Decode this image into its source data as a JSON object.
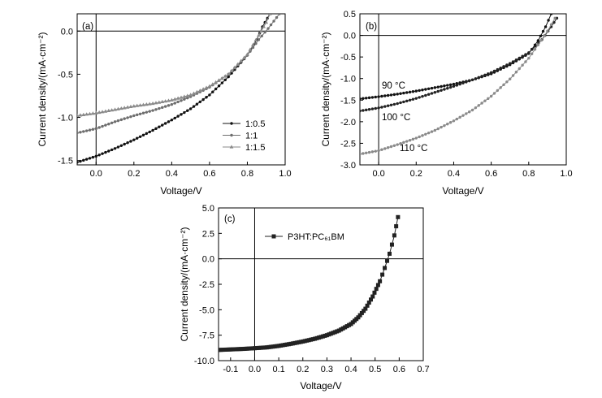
{
  "chart_data": [
    {
      "type": "line",
      "panel_label": "(a)",
      "xlabel": "Voltage/V",
      "ylabel": "Current density/(mA·cm⁻²)",
      "xlim": [
        -0.1,
        1.0
      ],
      "ylim": [
        -1.55,
        0.2
      ],
      "xticks": [
        0.0,
        0.2,
        0.4,
        0.6,
        0.8,
        1.0
      ],
      "xtick_labels": [
        "0.0",
        "0.2",
        "0.4",
        "0.6",
        "0.8",
        "1.0"
      ],
      "yticks": [
        -1.5,
        -1.0,
        -0.5,
        0.0
      ],
      "ytick_labels": [
        "-1.5",
        "-1.0",
        "-0.5",
        "0.0"
      ],
      "legend_position": "bottom-right",
      "series": [
        {
          "name": "1:0.5",
          "color": "#111111",
          "marker": "dot",
          "points": [
            [
              -0.1,
              -1.52
            ],
            [
              0.0,
              -1.45
            ],
            [
              0.1,
              -1.36
            ],
            [
              0.2,
              -1.26
            ],
            [
              0.3,
              -1.15
            ],
            [
              0.4,
              -1.03
            ],
            [
              0.5,
              -0.9
            ],
            [
              0.6,
              -0.74
            ],
            [
              0.7,
              -0.53
            ],
            [
              0.8,
              -0.28
            ],
            [
              0.85,
              -0.1
            ],
            [
              0.88,
              0.05
            ],
            [
              0.92,
              0.2
            ]
          ]
        },
        {
          "name": "1:1",
          "color": "#6e6e6e",
          "marker": "dot",
          "points": [
            [
              -0.1,
              -1.18
            ],
            [
              0.0,
              -1.13
            ],
            [
              0.1,
              -1.05
            ],
            [
              0.2,
              -0.98
            ],
            [
              0.3,
              -0.92
            ],
            [
              0.4,
              -0.85
            ],
            [
              0.5,
              -0.76
            ],
            [
              0.6,
              -0.65
            ],
            [
              0.7,
              -0.5
            ],
            [
              0.8,
              -0.28
            ],
            [
              0.86,
              -0.1
            ],
            [
              0.91,
              0.03
            ],
            [
              0.97,
              0.2
            ]
          ]
        },
        {
          "name": "1:1.5",
          "color": "#8a8a8a",
          "marker": "triangle",
          "points": [
            [
              -0.1,
              -0.98
            ],
            [
              0.0,
              -0.95
            ],
            [
              0.1,
              -0.91
            ],
            [
              0.2,
              -0.87
            ],
            [
              0.3,
              -0.84
            ],
            [
              0.4,
              -0.8
            ],
            [
              0.5,
              -0.74
            ],
            [
              0.6,
              -0.64
            ],
            [
              0.7,
              -0.5
            ],
            [
              0.8,
              -0.27
            ],
            [
              0.86,
              -0.05
            ],
            [
              0.9,
              0.1
            ],
            [
              0.92,
              0.2
            ]
          ]
        }
      ]
    },
    {
      "type": "line",
      "panel_label": "(b)",
      "xlabel": "Voltage/V",
      "ylabel": "Current density/(mA·cm⁻²)",
      "xlim": [
        -0.1,
        1.0
      ],
      "ylim": [
        -3.0,
        0.5
      ],
      "xticks": [
        0.0,
        0.2,
        0.4,
        0.6,
        0.8,
        1.0
      ],
      "xtick_labels": [
        "0.0",
        "0.2",
        "0.4",
        "0.6",
        "0.8",
        "1.0"
      ],
      "yticks": [
        -3.0,
        -2.5,
        -2.0,
        -1.5,
        -1.0,
        -0.5,
        0.0,
        0.5
      ],
      "ytick_labels": [
        "-3.0",
        "-2.5",
        "-2.0",
        "-1.5",
        "-1.0",
        "-0.5",
        "0.0",
        "0.5"
      ],
      "series": [
        {
          "name": "90 °C",
          "color": "#111111",
          "marker": "dot",
          "points": [
            [
              -0.1,
              -1.47
            ],
            [
              0.0,
              -1.42
            ],
            [
              0.1,
              -1.36
            ],
            [
              0.2,
              -1.29
            ],
            [
              0.3,
              -1.21
            ],
            [
              0.4,
              -1.13
            ],
            [
              0.5,
              -1.03
            ],
            [
              0.6,
              -0.89
            ],
            [
              0.7,
              -0.68
            ],
            [
              0.8,
              -0.42
            ],
            [
              0.85,
              -0.12
            ],
            [
              0.89,
              0.2
            ],
            [
              0.92,
              0.5
            ]
          ]
        },
        {
          "name": "100 °C",
          "color": "#222222",
          "marker": "dot",
          "points": [
            [
              -0.1,
              -1.75
            ],
            [
              0.0,
              -1.68
            ],
            [
              0.1,
              -1.58
            ],
            [
              0.2,
              -1.46
            ],
            [
              0.3,
              -1.32
            ],
            [
              0.4,
              -1.18
            ],
            [
              0.5,
              -1.03
            ],
            [
              0.6,
              -0.86
            ],
            [
              0.7,
              -0.65
            ],
            [
              0.8,
              -0.4
            ],
            [
              0.87,
              -0.1
            ],
            [
              0.92,
              0.2
            ],
            [
              0.95,
              0.4
            ]
          ]
        },
        {
          "name": "110 °C",
          "color": "#8a8a8a",
          "marker": "dot",
          "points": [
            [
              -0.1,
              -2.75
            ],
            [
              0.0,
              -2.67
            ],
            [
              0.1,
              -2.53
            ],
            [
              0.2,
              -2.38
            ],
            [
              0.3,
              -2.2
            ],
            [
              0.4,
              -1.98
            ],
            [
              0.5,
              -1.73
            ],
            [
              0.6,
              -1.41
            ],
            [
              0.7,
              -1.01
            ],
            [
              0.8,
              -0.53
            ],
            [
              0.85,
              -0.22
            ],
            [
              0.9,
              0.1
            ],
            [
              0.94,
              0.4
            ]
          ]
        }
      ]
    },
    {
      "type": "line",
      "panel_label": "(c)",
      "xlabel": "Voltage/V",
      "ylabel": "Current density/(mA·cm⁻²)",
      "xlim": [
        -0.15,
        0.7
      ],
      "ylim": [
        -10.0,
        5.0
      ],
      "xticks": [
        -0.1,
        0.0,
        0.1,
        0.2,
        0.3,
        0.4,
        0.5,
        0.6,
        0.7
      ],
      "xtick_labels": [
        "-0.1",
        "0.0",
        "0.1",
        "0.2",
        "0.3",
        "0.4",
        "0.5",
        "0.6",
        "0.7"
      ],
      "yticks": [
        -10.0,
        -7.5,
        -5.0,
        -2.5,
        0.0,
        2.5,
        5.0
      ],
      "ytick_labels": [
        "-10.0",
        "-7.5",
        "-5.0",
        "-2.5",
        "0.0",
        "2.5",
        "5.0"
      ],
      "legend_position": "top-left",
      "series": [
        {
          "name": "P3HT:PC₆₁BM",
          "color": "#222222",
          "marker": "square",
          "points": [
            [
              -0.15,
              -8.95
            ],
            [
              -0.1,
              -8.9
            ],
            [
              -0.05,
              -8.85
            ],
            [
              0.0,
              -8.78
            ],
            [
              0.05,
              -8.7
            ],
            [
              0.1,
              -8.55
            ],
            [
              0.15,
              -8.35
            ],
            [
              0.2,
              -8.12
            ],
            [
              0.25,
              -7.85
            ],
            [
              0.3,
              -7.5
            ],
            [
              0.35,
              -7.05
            ],
            [
              0.4,
              -6.4
            ],
            [
              0.43,
              -5.75
            ],
            [
              0.46,
              -4.9
            ],
            [
              0.49,
              -3.7
            ],
            [
              0.52,
              -2.2
            ],
            [
              0.54,
              -0.9
            ],
            [
              0.56,
              0.5
            ],
            [
              0.58,
              2.3
            ],
            [
              0.595,
              4.1
            ]
          ]
        }
      ]
    }
  ]
}
